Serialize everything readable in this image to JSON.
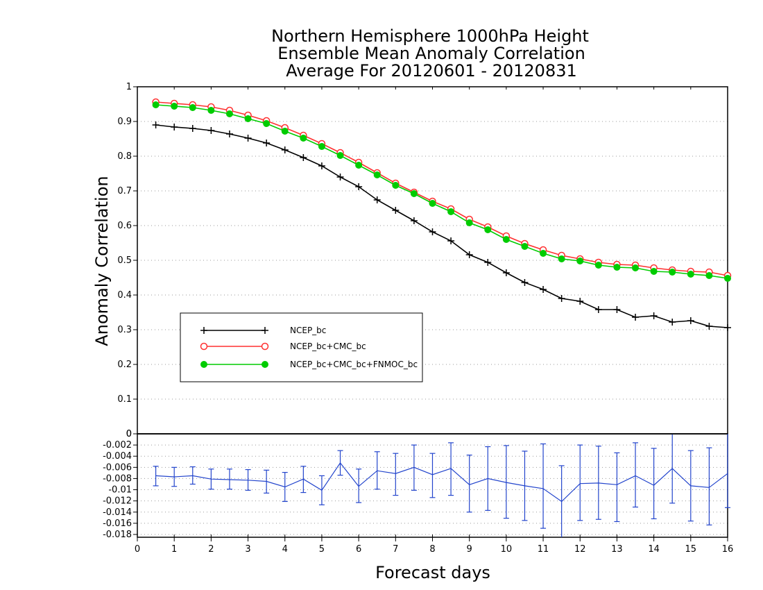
{
  "chart_data": [
    {
      "type": "line",
      "title": [
        "Northern Hemisphere 1000hPa Height",
        "Ensemble Mean Anomaly Correlation",
        "Average For 20120601 - 20120831"
      ],
      "xlabel": "Forecast days",
      "ylabel": "Anomaly Correlation",
      "xlim": [
        0,
        16
      ],
      "ylim": [
        0,
        1
      ],
      "x_ticks": [
        0,
        1,
        2,
        3,
        4,
        5,
        6,
        7,
        8,
        9,
        10,
        11,
        12,
        13,
        14,
        15,
        16
      ],
      "y_ticks": [
        0,
        0.1,
        0.2,
        0.3,
        0.4,
        0.5,
        0.6,
        0.7,
        0.8,
        0.9,
        1
      ],
      "y_tick_labels": [
        "0",
        "0.1",
        "0.2",
        "0.3",
        "0.4",
        "0.5",
        "0.6",
        "0.7",
        "0.8",
        "0.9",
        "1"
      ],
      "grid": "horizontal dotted",
      "legend_position": "lower-left",
      "x": [
        0.5,
        1,
        1.5,
        2,
        2.5,
        3,
        3.5,
        4,
        4.5,
        5,
        5.5,
        6,
        6.5,
        7,
        7.5,
        8,
        8.5,
        9,
        9.5,
        10,
        10.5,
        11,
        11.5,
        12,
        12.5,
        13,
        13.5,
        14,
        14.5,
        15,
        15.5,
        16
      ],
      "series": [
        {
          "name": "NCEP_bc",
          "color": "#000000",
          "marker": "plus",
          "values": [
            0.89,
            0.884,
            0.88,
            0.874,
            0.864,
            0.852,
            0.838,
            0.818,
            0.796,
            0.772,
            0.74,
            0.712,
            0.674,
            0.644,
            0.614,
            0.582,
            0.556,
            0.516,
            0.494,
            0.464,
            0.436,
            0.416,
            0.39,
            0.382,
            0.358,
            0.358,
            0.336,
            0.34,
            0.322,
            0.326,
            0.31,
            0.306
          ]
        },
        {
          "name": "NCEP_bc+CMC_bc",
          "color": "#ff3030",
          "marker": "open-circle",
          "values": [
            0.956,
            0.952,
            0.948,
            0.942,
            0.932,
            0.918,
            0.902,
            0.882,
            0.86,
            0.836,
            0.81,
            0.782,
            0.752,
            0.722,
            0.696,
            0.67,
            0.648,
            0.618,
            0.596,
            0.57,
            0.548,
            0.53,
            0.514,
            0.504,
            0.494,
            0.488,
            0.486,
            0.478,
            0.472,
            0.468,
            0.466,
            0.456
          ]
        },
        {
          "name": "NCEP_bc+CMC_bc+FNMOC_bc",
          "color": "#00cc00",
          "marker": "filled-circle",
          "values": [
            0.948,
            0.944,
            0.94,
            0.932,
            0.922,
            0.908,
            0.894,
            0.872,
            0.852,
            0.828,
            0.802,
            0.774,
            0.746,
            0.716,
            0.692,
            0.664,
            0.64,
            0.608,
            0.588,
            0.56,
            0.54,
            0.52,
            0.504,
            0.498,
            0.486,
            0.48,
            0.478,
            0.468,
            0.466,
            0.46,
            0.456,
            0.448
          ]
        }
      ]
    },
    {
      "type": "line",
      "xlim": [
        0,
        16
      ],
      "ylim": [
        -0.0185,
        0
      ],
      "y_ticks": [
        0,
        -0.002,
        -0.004,
        -0.006,
        -0.008,
        -0.01,
        -0.012,
        -0.014,
        -0.016,
        -0.018
      ],
      "y_tick_labels": [
        "0",
        "-0.002",
        "-0.004",
        "-0.006",
        "-0.008",
        "-0.01",
        "-0.012",
        "-0.014",
        "-0.016",
        "-0.018"
      ],
      "grid": "horizontal dotted",
      "series": [
        {
          "color": "#2244cc",
          "marker": "error-bar",
          "x": [
            0.5,
            1,
            1.5,
            2,
            2.5,
            3,
            3.5,
            4,
            4.5,
            5,
            5.5,
            6,
            6.5,
            7,
            7.5,
            8,
            8.5,
            9,
            9.5,
            10,
            10.5,
            11,
            11.5,
            12,
            12.5,
            13,
            13.5,
            14,
            14.5,
            15,
            15.5,
            16
          ],
          "values": [
            -0.0075,
            -0.0077,
            -0.0075,
            -0.0081,
            -0.0082,
            -0.0083,
            -0.0085,
            -0.0095,
            -0.0081,
            -0.0101,
            -0.0052,
            -0.0094,
            -0.0066,
            -0.0071,
            -0.006,
            -0.0073,
            -0.0062,
            -0.0091,
            -0.008,
            -0.0087,
            -0.0093,
            -0.0098,
            -0.0121,
            -0.0089,
            -0.0088,
            -0.0091,
            -0.0075,
            -0.0092,
            -0.0062,
            -0.0093,
            -0.0096,
            -0.0071
          ],
          "lower": [
            -0.0093,
            -0.0094,
            -0.009,
            -0.0099,
            -0.0099,
            -0.0101,
            -0.0106,
            -0.0121,
            -0.0105,
            -0.0127,
            -0.0074,
            -0.0123,
            -0.0099,
            -0.011,
            -0.0101,
            -0.0114,
            -0.011,
            -0.014,
            -0.0137,
            -0.0151,
            -0.0155,
            -0.0169,
            -0.0185,
            -0.0155,
            -0.0153,
            -0.0157,
            -0.0131,
            -0.0152,
            -0.0124,
            -0.0156,
            -0.0163,
            -0.0132
          ],
          "upper": [
            -0.0058,
            -0.006,
            -0.0059,
            -0.0063,
            -0.0063,
            -0.0064,
            -0.0065,
            -0.0069,
            -0.0058,
            -0.0075,
            -0.003,
            -0.0063,
            -0.0032,
            -0.0035,
            -0.002,
            -0.0035,
            -0.0016,
            -0.0038,
            -0.0023,
            -0.0021,
            -0.0031,
            -0.0018,
            -0.0057,
            -0.002,
            -0.0022,
            -0.0034,
            -0.0016,
            -0.0026,
            0.0,
            -0.003,
            -0.0025,
            0.0
          ]
        }
      ]
    }
  ]
}
